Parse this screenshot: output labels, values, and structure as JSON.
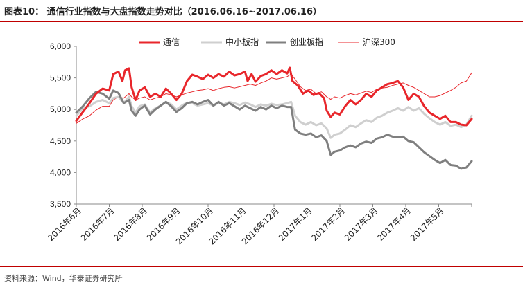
{
  "header": {
    "title": "图表10：  通信行业指数与大盘指数走势对比（2016.06.16~2017.06.16）"
  },
  "footer": {
    "source": "资料来源：Wind，华泰证券研究所"
  },
  "chart_data": {
    "type": "line",
    "title": "",
    "xlabel": "",
    "ylabel": "",
    "ylim": [
      3500,
      6000
    ],
    "yticks": [
      "6,000",
      "5,500",
      "5,000",
      "4,500",
      "4,000",
      "3,500"
    ],
    "ytick_values": [
      6000,
      5500,
      5000,
      4500,
      4000,
      3500
    ],
    "x_start": "2016-06-16",
    "x_end": "2017-06-16",
    "categories": [
      "2016年6月",
      "2016年7月",
      "2016年8月",
      "2016年9月",
      "2016年10月",
      "2016年11月",
      "2016年12月",
      "2017年1月",
      "2017年2月",
      "2017年3月",
      "2017年4月",
      "2017年5月"
    ],
    "legend_position": "top-center",
    "grid": false,
    "series": [
      {
        "name": "通信",
        "color": "#e8262b",
        "width": 3,
        "values": [
          [
            0,
            4820
          ],
          [
            5,
            4960
          ],
          [
            10,
            5100
          ],
          [
            15,
            5250
          ],
          [
            20,
            5330
          ],
          [
            25,
            5300
          ],
          [
            28,
            5560
          ],
          [
            32,
            5600
          ],
          [
            35,
            5450
          ],
          [
            37,
            5620
          ],
          [
            40,
            5650
          ],
          [
            42,
            5350
          ],
          [
            45,
            5150
          ],
          [
            48,
            5300
          ],
          [
            52,
            5350
          ],
          [
            56,
            5200
          ],
          [
            60,
            5250
          ],
          [
            64,
            5200
          ],
          [
            68,
            5330
          ],
          [
            72,
            5250
          ],
          [
            76,
            5150
          ],
          [
            80,
            5250
          ],
          [
            84,
            5450
          ],
          [
            88,
            5550
          ],
          [
            92,
            5520
          ],
          [
            96,
            5480
          ],
          [
            100,
            5550
          ],
          [
            104,
            5500
          ],
          [
            108,
            5560
          ],
          [
            112,
            5520
          ],
          [
            116,
            5600
          ],
          [
            120,
            5540
          ],
          [
            124,
            5560
          ],
          [
            128,
            5600
          ],
          [
            130,
            5450
          ],
          [
            133,
            5560
          ],
          [
            136,
            5440
          ],
          [
            140,
            5530
          ],
          [
            144,
            5560
          ],
          [
            148,
            5620
          ],
          [
            152,
            5560
          ],
          [
            156,
            5620
          ],
          [
            160,
            5570
          ],
          [
            162,
            5660
          ],
          [
            164,
            5450
          ],
          [
            168,
            5380
          ],
          [
            172,
            5250
          ],
          [
            176,
            5300
          ],
          [
            180,
            5230
          ],
          [
            184,
            5260
          ],
          [
            188,
            5180
          ],
          [
            190,
            4980
          ],
          [
            193,
            4880
          ],
          [
            196,
            4950
          ],
          [
            200,
            4920
          ],
          [
            204,
            5050
          ],
          [
            208,
            5150
          ],
          [
            212,
            5080
          ],
          [
            216,
            5150
          ],
          [
            220,
            5250
          ],
          [
            224,
            5200
          ],
          [
            228,
            5300
          ],
          [
            232,
            5350
          ],
          [
            236,
            5400
          ],
          [
            240,
            5420
          ],
          [
            244,
            5450
          ],
          [
            248,
            5350
          ],
          [
            252,
            5150
          ],
          [
            256,
            5250
          ],
          [
            260,
            5200
          ],
          [
            264,
            5050
          ],
          [
            268,
            4950
          ],
          [
            272,
            4900
          ],
          [
            276,
            4850
          ],
          [
            280,
            4900
          ],
          [
            284,
            4800
          ],
          [
            288,
            4800
          ],
          [
            292,
            4760
          ],
          [
            296,
            4750
          ],
          [
            300,
            4850
          ]
        ]
      },
      {
        "name": "中小板指",
        "color": "#cfcfcf",
        "width": 3,
        "values": [
          [
            0,
            4900
          ],
          [
            5,
            5020
          ],
          [
            10,
            5050
          ],
          [
            15,
            5120
          ],
          [
            20,
            5150
          ],
          [
            25,
            5100
          ],
          [
            28,
            5180
          ],
          [
            32,
            5200
          ],
          [
            36,
            5100
          ],
          [
            40,
            5200
          ],
          [
            42,
            5050
          ],
          [
            45,
            4950
          ],
          [
            48,
            5050
          ],
          [
            52,
            5080
          ],
          [
            56,
            4950
          ],
          [
            60,
            5020
          ],
          [
            64,
            5060
          ],
          [
            68,
            5120
          ],
          [
            72,
            5080
          ],
          [
            76,
            5000
          ],
          [
            80,
            5060
          ],
          [
            84,
            5110
          ],
          [
            88,
            5100
          ],
          [
            92,
            5060
          ],
          [
            96,
            5080
          ],
          [
            100,
            5100
          ],
          [
            104,
            5060
          ],
          [
            108,
            5110
          ],
          [
            112,
            5080
          ],
          [
            116,
            5120
          ],
          [
            120,
            5100
          ],
          [
            124,
            5070
          ],
          [
            128,
            5110
          ],
          [
            132,
            5080
          ],
          [
            136,
            5040
          ],
          [
            140,
            5080
          ],
          [
            144,
            5060
          ],
          [
            148,
            5090
          ],
          [
            152,
            5070
          ],
          [
            156,
            5080
          ],
          [
            160,
            5100
          ],
          [
            163,
            5120
          ],
          [
            166,
            4900
          ],
          [
            170,
            4800
          ],
          [
            174,
            4760
          ],
          [
            178,
            4800
          ],
          [
            182,
            4750
          ],
          [
            186,
            4780
          ],
          [
            190,
            4700
          ],
          [
            193,
            4550
          ],
          [
            196,
            4600
          ],
          [
            200,
            4620
          ],
          [
            204,
            4680
          ],
          [
            208,
            4750
          ],
          [
            212,
            4720
          ],
          [
            216,
            4780
          ],
          [
            220,
            4830
          ],
          [
            224,
            4800
          ],
          [
            228,
            4870
          ],
          [
            232,
            4900
          ],
          [
            236,
            4950
          ],
          [
            240,
            4980
          ],
          [
            244,
            5020
          ],
          [
            248,
            4980
          ],
          [
            252,
            5040
          ],
          [
            256,
            4980
          ],
          [
            260,
            5020
          ],
          [
            264,
            4930
          ],
          [
            268,
            4860
          ],
          [
            272,
            4800
          ],
          [
            276,
            4760
          ],
          [
            280,
            4800
          ],
          [
            284,
            4740
          ],
          [
            288,
            4760
          ],
          [
            292,
            4720
          ],
          [
            296,
            4760
          ],
          [
            300,
            4900
          ]
        ]
      },
      {
        "name": "创业板指",
        "color": "#7f7f7f",
        "width": 3,
        "values": [
          [
            0,
            4950
          ],
          [
            5,
            5050
          ],
          [
            10,
            5180
          ],
          [
            15,
            5280
          ],
          [
            20,
            5250
          ],
          [
            25,
            5170
          ],
          [
            28,
            5300
          ],
          [
            32,
            5260
          ],
          [
            36,
            5100
          ],
          [
            40,
            5150
          ],
          [
            42,
            4980
          ],
          [
            45,
            4900
          ],
          [
            48,
            5000
          ],
          [
            52,
            5060
          ],
          [
            56,
            4920
          ],
          [
            60,
            5000
          ],
          [
            64,
            5060
          ],
          [
            68,
            5120
          ],
          [
            72,
            5050
          ],
          [
            76,
            4960
          ],
          [
            80,
            5020
          ],
          [
            84,
            5100
          ],
          [
            88,
            5120
          ],
          [
            92,
            5080
          ],
          [
            96,
            5120
          ],
          [
            100,
            5150
          ],
          [
            104,
            5060
          ],
          [
            108,
            5120
          ],
          [
            112,
            5060
          ],
          [
            116,
            5100
          ],
          [
            120,
            5050
          ],
          [
            124,
            5000
          ],
          [
            128,
            5060
          ],
          [
            132,
            5020
          ],
          [
            136,
            4980
          ],
          [
            140,
            5040
          ],
          [
            144,
            5000
          ],
          [
            148,
            5060
          ],
          [
            152,
            5020
          ],
          [
            156,
            5060
          ],
          [
            160,
            5040
          ],
          [
            163,
            5040
          ],
          [
            166,
            4680
          ],
          [
            170,
            4620
          ],
          [
            174,
            4600
          ],
          [
            178,
            4620
          ],
          [
            182,
            4560
          ],
          [
            186,
            4590
          ],
          [
            190,
            4500
          ],
          [
            193,
            4280
          ],
          [
            196,
            4330
          ],
          [
            200,
            4350
          ],
          [
            204,
            4400
          ],
          [
            208,
            4430
          ],
          [
            212,
            4400
          ],
          [
            216,
            4460
          ],
          [
            220,
            4490
          ],
          [
            224,
            4470
          ],
          [
            228,
            4540
          ],
          [
            232,
            4560
          ],
          [
            236,
            4600
          ],
          [
            240,
            4570
          ],
          [
            244,
            4560
          ],
          [
            248,
            4570
          ],
          [
            252,
            4500
          ],
          [
            256,
            4480
          ],
          [
            260,
            4400
          ],
          [
            264,
            4320
          ],
          [
            268,
            4260
          ],
          [
            272,
            4200
          ],
          [
            276,
            4150
          ],
          [
            280,
            4200
          ],
          [
            284,
            4120
          ],
          [
            288,
            4110
          ],
          [
            292,
            4060
          ],
          [
            296,
            4080
          ],
          [
            300,
            4180
          ]
        ]
      },
      {
        "name": "沪深300",
        "color": "#e8262b",
        "width": 1,
        "values": [
          [
            0,
            4780
          ],
          [
            5,
            4850
          ],
          [
            10,
            4900
          ],
          [
            15,
            4990
          ],
          [
            20,
            5050
          ],
          [
            25,
            5050
          ],
          [
            28,
            5150
          ],
          [
            32,
            5200
          ],
          [
            36,
            5180
          ],
          [
            40,
            5250
          ],
          [
            42,
            5200
          ],
          [
            45,
            5150
          ],
          [
            48,
            5180
          ],
          [
            52,
            5200
          ],
          [
            56,
            5150
          ],
          [
            60,
            5180
          ],
          [
            64,
            5200
          ],
          [
            68,
            5250
          ],
          [
            72,
            5230
          ],
          [
            76,
            5200
          ],
          [
            80,
            5230
          ],
          [
            84,
            5260
          ],
          [
            88,
            5280
          ],
          [
            92,
            5300
          ],
          [
            96,
            5310
          ],
          [
            100,
            5330
          ],
          [
            104,
            5300
          ],
          [
            108,
            5330
          ],
          [
            112,
            5350
          ],
          [
            116,
            5360
          ],
          [
            120,
            5340
          ],
          [
            124,
            5360
          ],
          [
            128,
            5380
          ],
          [
            132,
            5400
          ],
          [
            136,
            5380
          ],
          [
            140,
            5420
          ],
          [
            144,
            5450
          ],
          [
            148,
            5500
          ],
          [
            152,
            5480
          ],
          [
            156,
            5500
          ],
          [
            160,
            5520
          ],
          [
            163,
            5560
          ],
          [
            166,
            5480
          ],
          [
            170,
            5360
          ],
          [
            174,
            5300
          ],
          [
            178,
            5320
          ],
          [
            182,
            5250
          ],
          [
            186,
            5280
          ],
          [
            190,
            5200
          ],
          [
            193,
            5160
          ],
          [
            196,
            5200
          ],
          [
            200,
            5180
          ],
          [
            204,
            5220
          ],
          [
            208,
            5250
          ],
          [
            212,
            5230
          ],
          [
            216,
            5260
          ],
          [
            220,
            5290
          ],
          [
            224,
            5270
          ],
          [
            228,
            5320
          ],
          [
            232,
            5340
          ],
          [
            236,
            5350
          ],
          [
            240,
            5380
          ],
          [
            244,
            5400
          ],
          [
            248,
            5420
          ],
          [
            252,
            5380
          ],
          [
            256,
            5350
          ],
          [
            260,
            5300
          ],
          [
            264,
            5250
          ],
          [
            268,
            5200
          ],
          [
            272,
            5200
          ],
          [
            276,
            5220
          ],
          [
            280,
            5260
          ],
          [
            284,
            5300
          ],
          [
            288,
            5350
          ],
          [
            292,
            5420
          ],
          [
            296,
            5450
          ],
          [
            300,
            5580
          ]
        ]
      }
    ]
  }
}
